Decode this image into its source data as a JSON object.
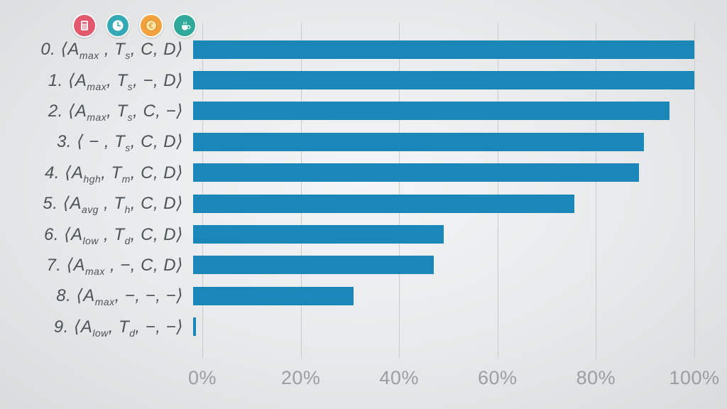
{
  "slide": {
    "background": "#e9ebec"
  },
  "icons": [
    {
      "name": "calculator-icon",
      "bg": "#e2596e"
    },
    {
      "name": "clock-icon",
      "bg": "#35aab6"
    },
    {
      "name": "euro-coin-icon",
      "bg": "#f2a23c"
    },
    {
      "name": "coffee-icon",
      "bg": "#2fa99a"
    }
  ],
  "chart_data": {
    "type": "bar",
    "orientation": "horizontal",
    "bar_color": "#1b87b8",
    "grid": true,
    "xlim": [
      0,
      100
    ],
    "x_ticks": [
      "0%",
      "20%",
      "40%",
      "60%",
      "80%",
      "100%"
    ],
    "x_tick_values": [
      0,
      20,
      40,
      60,
      80,
      100
    ],
    "rows": [
      {
        "text": "0. ⟨A_max , T_s, C, D⟩",
        "value": 100,
        "label_parts": [
          [
            "t",
            "0. ⟨A"
          ],
          [
            "s",
            "max"
          ],
          [
            "t",
            " , T"
          ],
          [
            "s",
            "s"
          ],
          [
            "t",
            ", C, D⟩"
          ]
        ]
      },
      {
        "text": "1. ⟨A_max, T_s, −, D⟩",
        "value": 100,
        "label_parts": [
          [
            "t",
            "1. ⟨A"
          ],
          [
            "s",
            "max"
          ],
          [
            "t",
            ", T"
          ],
          [
            "s",
            "s"
          ],
          [
            "t",
            ", −, D⟩"
          ]
        ]
      },
      {
        "text": "2. ⟨A_max, T_s, C, −⟩",
        "value": 95,
        "label_parts": [
          [
            "t",
            "2. ⟨A"
          ],
          [
            "s",
            "max"
          ],
          [
            "t",
            ", T"
          ],
          [
            "s",
            "s"
          ],
          [
            "t",
            ", C, −⟩"
          ]
        ]
      },
      {
        "text": "3. ⟨ − , T_s, C, D⟩",
        "value": 90,
        "label_parts": [
          [
            "t",
            "3. ⟨ − , T"
          ],
          [
            "s",
            "s"
          ],
          [
            "t",
            ", C, D⟩"
          ]
        ]
      },
      {
        "text": "4. ⟨A_hgh, T_m, C, D⟩",
        "value": 89,
        "label_parts": [
          [
            "t",
            "4. ⟨A"
          ],
          [
            "s",
            "hgh"
          ],
          [
            "t",
            ", T"
          ],
          [
            "s",
            "m"
          ],
          [
            "t",
            ", C, D⟩"
          ]
        ]
      },
      {
        "text": "5. ⟨A_avg , T_h, C, D⟩",
        "value": 76,
        "label_parts": [
          [
            "t",
            "5. ⟨A"
          ],
          [
            "s",
            "avg"
          ],
          [
            "t",
            " , T"
          ],
          [
            "s",
            "h"
          ],
          [
            "t",
            ", C, D⟩"
          ]
        ]
      },
      {
        "text": "6. ⟨A_low , T_d, C, D⟩",
        "value": 50,
        "label_parts": [
          [
            "t",
            "6. ⟨A"
          ],
          [
            "s",
            "low"
          ],
          [
            "t",
            " , T"
          ],
          [
            "s",
            "d"
          ],
          [
            "t",
            ", C, D⟩"
          ]
        ]
      },
      {
        "text": "7. ⟨A_max , −, C, D⟩",
        "value": 48,
        "label_parts": [
          [
            "t",
            "7. ⟨A"
          ],
          [
            "s",
            "max"
          ],
          [
            "t",
            " , −, C, D⟩"
          ]
        ]
      },
      {
        "text": "8. ⟨A_max, −, −, −⟩",
        "value": 32,
        "label_parts": [
          [
            "t",
            "8. ⟨A"
          ],
          [
            "s",
            "max"
          ],
          [
            "t",
            ", −, −, −⟩"
          ]
        ]
      },
      {
        "text": "9. ⟨A_low, T_d, −, −⟩",
        "value": 0.5,
        "label_parts": [
          [
            "t",
            "9. ⟨A"
          ],
          [
            "s",
            "low"
          ],
          [
            "t",
            ", T"
          ],
          [
            "s",
            "d"
          ],
          [
            "t",
            ", −, −⟩"
          ]
        ]
      }
    ]
  }
}
